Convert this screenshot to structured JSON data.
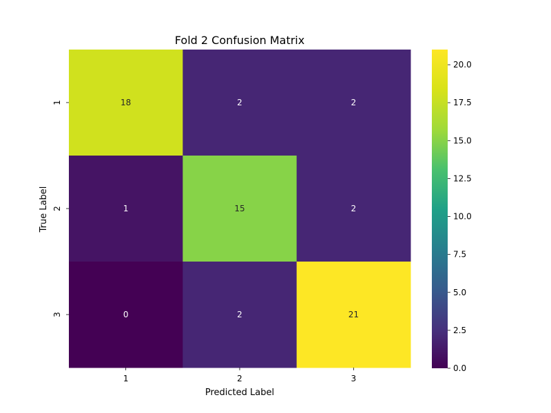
{
  "chart_data": {
    "type": "heatmap",
    "title": "Fold 2 Confusion Matrix",
    "xlabel": "Predicted Label",
    "ylabel": "True Label",
    "x_categories": [
      "1",
      "2",
      "3"
    ],
    "y_categories": [
      "1",
      "2",
      "3"
    ],
    "values": [
      [
        18,
        2,
        2
      ],
      [
        1,
        15,
        2
      ],
      [
        0,
        2,
        21
      ]
    ],
    "colormap": "viridis",
    "vmin": 0,
    "vmax": 21,
    "colorbar_ticks": [
      "0.0",
      "2.5",
      "5.0",
      "7.5",
      "10.0",
      "12.5",
      "15.0",
      "17.5",
      "20.0"
    ],
    "annotation_colors": {
      "dark_text": "#262626",
      "light_text": "#ffffff"
    },
    "grid": false,
    "colorbar": "right"
  }
}
